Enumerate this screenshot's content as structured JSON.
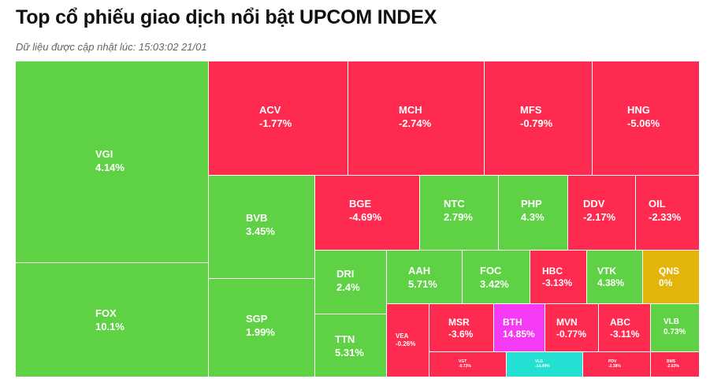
{
  "header": {
    "title": "Top cổ phiếu giao dịch nổi bật UPCOM INDEX",
    "updated": "Dữ liệu được cập nhật lúc: 15:03:02 21/01"
  },
  "colors": {
    "up": "#5fd145",
    "down": "#ff2a4f",
    "flat": "#e3b50b",
    "ceiling": "#f53af5",
    "floor": "#22e0d2"
  },
  "chart_data": {
    "type": "treemap",
    "unit": "%",
    "items": [
      {
        "ticker": "VGI",
        "change": "4.14%",
        "status": "up"
      },
      {
        "ticker": "FOX",
        "change": "10.1%",
        "status": "up"
      },
      {
        "ticker": "ACV",
        "change": "-1.77%",
        "status": "down"
      },
      {
        "ticker": "MCH",
        "change": "-2.74%",
        "status": "down"
      },
      {
        "ticker": "MFS",
        "change": "-0.79%",
        "status": "down"
      },
      {
        "ticker": "HNG",
        "change": "-5.06%",
        "status": "down"
      },
      {
        "ticker": "BVB",
        "change": "3.45%",
        "status": "up"
      },
      {
        "ticker": "SGP",
        "change": "1.99%",
        "status": "up"
      },
      {
        "ticker": "BGE",
        "change": "-4.69%",
        "status": "down"
      },
      {
        "ticker": "NTC",
        "change": "2.79%",
        "status": "up"
      },
      {
        "ticker": "PHP",
        "change": "4.3%",
        "status": "up"
      },
      {
        "ticker": "DDV",
        "change": "-2.17%",
        "status": "down"
      },
      {
        "ticker": "OIL",
        "change": "-2.33%",
        "status": "down"
      },
      {
        "ticker": "DRI",
        "change": "2.4%",
        "status": "up"
      },
      {
        "ticker": "TTN",
        "change": "5.31%",
        "status": "up"
      },
      {
        "ticker": "AAH",
        "change": "5.71%",
        "status": "up"
      },
      {
        "ticker": "FOC",
        "change": "3.42%",
        "status": "up"
      },
      {
        "ticker": "HBC",
        "change": "-3.13%",
        "status": "down"
      },
      {
        "ticker": "VTK",
        "change": "4.38%",
        "status": "up"
      },
      {
        "ticker": "QNS",
        "change": "0%",
        "status": "flat"
      },
      {
        "ticker": "VEA",
        "change": "-0.26%",
        "status": "down"
      },
      {
        "ticker": "MSR",
        "change": "-3.6%",
        "status": "down"
      },
      {
        "ticker": "BTH",
        "change": "14.85%",
        "status": "ceiling"
      },
      {
        "ticker": "MVN",
        "change": "-0.77%",
        "status": "down"
      },
      {
        "ticker": "ABC",
        "change": "-3.11%",
        "status": "down"
      },
      {
        "ticker": "VLB",
        "change": "0.73%",
        "status": "up"
      },
      {
        "ticker": "VGT",
        "change": "-0.73%",
        "status": "down"
      },
      {
        "ticker": "VLG",
        "change": "-14.49%",
        "status": "floor"
      },
      {
        "ticker": "PDV",
        "change": "-2.38%",
        "status": "down"
      },
      {
        "ticker": "BMS",
        "change": "-2.63%",
        "status": "down"
      }
    ]
  }
}
